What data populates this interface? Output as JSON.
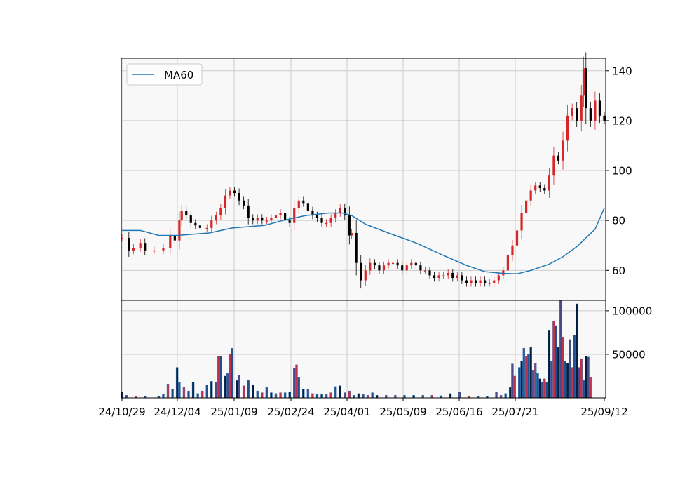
{
  "chart_data": [
    {
      "type": "candlestick",
      "legend": {
        "entries": [
          "MA60"
        ],
        "placement": "top-left"
      },
      "grid": true,
      "y_ticks": [
        60,
        80,
        100,
        120,
        140
      ],
      "ylim": [
        48,
        145
      ],
      "x_tick_labels": [
        "24/10/29",
        "24/12/04",
        "25/01/09",
        "25/02/24",
        "25/04/01",
        "25/05/09",
        "25/06/16",
        "25/07/21",
        "25/09/12"
      ],
      "colors": {
        "up": "#d62728",
        "down": "#000000",
        "ma": "#1f77b4",
        "background": "#f8f8f8",
        "grid": "#cccccc"
      },
      "ohlc_close": [
        {
          "t": 0,
          "v": 73
        },
        {
          "t": 3,
          "v": 68
        },
        {
          "t": 5,
          "v": 69
        },
        {
          "t": 8,
          "v": 71
        },
        {
          "t": 10,
          "v": 68
        },
        {
          "t": 14,
          "v": 68
        },
        {
          "t": 18,
          "v": 69
        },
        {
          "t": 21,
          "v": 74
        },
        {
          "t": 23,
          "v": 72
        },
        {
          "t": 25,
          "v": 80
        },
        {
          "t": 26,
          "v": 84
        },
        {
          "t": 28,
          "v": 82
        },
        {
          "t": 30,
          "v": 79
        },
        {
          "t": 32,
          "v": 78
        },
        {
          "t": 34,
          "v": 77
        },
        {
          "t": 37,
          "v": 77
        },
        {
          "t": 39,
          "v": 80
        },
        {
          "t": 41,
          "v": 82
        },
        {
          "t": 43,
          "v": 85
        },
        {
          "t": 45,
          "v": 90
        },
        {
          "t": 47,
          "v": 92
        },
        {
          "t": 49,
          "v": 91
        },
        {
          "t": 51,
          "v": 88
        },
        {
          "t": 53,
          "v": 86
        },
        {
          "t": 55,
          "v": 81
        },
        {
          "t": 57,
          "v": 80
        },
        {
          "t": 59,
          "v": 81
        },
        {
          "t": 61,
          "v": 80
        },
        {
          "t": 63,
          "v": 80
        },
        {
          "t": 65,
          "v": 81
        },
        {
          "t": 67,
          "v": 82
        },
        {
          "t": 69,
          "v": 83
        },
        {
          "t": 71,
          "v": 80
        },
        {
          "t": 73,
          "v": 79
        },
        {
          "t": 75,
          "v": 85
        },
        {
          "t": 77,
          "v": 88
        },
        {
          "t": 79,
          "v": 87
        },
        {
          "t": 81,
          "v": 84
        },
        {
          "t": 83,
          "v": 82
        },
        {
          "t": 85,
          "v": 81
        },
        {
          "t": 87,
          "v": 79
        },
        {
          "t": 89,
          "v": 79
        },
        {
          "t": 91,
          "v": 81
        },
        {
          "t": 93,
          "v": 83
        },
        {
          "t": 95,
          "v": 85
        },
        {
          "t": 97,
          "v": 82
        },
        {
          "t": 99,
          "v": 74
        },
        {
          "t": 100,
          "v": 75
        },
        {
          "t": 102,
          "v": 63
        },
        {
          "t": 104,
          "v": 56
        },
        {
          "t": 106,
          "v": 60
        },
        {
          "t": 108,
          "v": 63
        },
        {
          "t": 110,
          "v": 62
        },
        {
          "t": 112,
          "v": 60
        },
        {
          "t": 114,
          "v": 62
        },
        {
          "t": 116,
          "v": 63
        },
        {
          "t": 118,
          "v": 63
        },
        {
          "t": 120,
          "v": 62
        },
        {
          "t": 122,
          "v": 60
        },
        {
          "t": 124,
          "v": 62
        },
        {
          "t": 126,
          "v": 63
        },
        {
          "t": 128,
          "v": 62
        },
        {
          "t": 130,
          "v": 60
        },
        {
          "t": 132,
          "v": 60
        },
        {
          "t": 134,
          "v": 58
        },
        {
          "t": 136,
          "v": 57
        },
        {
          "t": 138,
          "v": 58
        },
        {
          "t": 140,
          "v": 58
        },
        {
          "t": 142,
          "v": 59
        },
        {
          "t": 144,
          "v": 57
        },
        {
          "t": 146,
          "v": 58
        },
        {
          "t": 148,
          "v": 56
        },
        {
          "t": 150,
          "v": 55
        },
        {
          "t": 152,
          "v": 56
        },
        {
          "t": 154,
          "v": 55
        },
        {
          "t": 156,
          "v": 56
        },
        {
          "t": 158,
          "v": 55
        },
        {
          "t": 160,
          "v": 55
        },
        {
          "t": 162,
          "v": 56
        },
        {
          "t": 164,
          "v": 58
        },
        {
          "t": 166,
          "v": 60
        },
        {
          "t": 168,
          "v": 66
        },
        {
          "t": 170,
          "v": 70
        },
        {
          "t": 172,
          "v": 76
        },
        {
          "t": 174,
          "v": 83
        },
        {
          "t": 176,
          "v": 88
        },
        {
          "t": 178,
          "v": 92
        },
        {
          "t": 180,
          "v": 94
        },
        {
          "t": 182,
          "v": 93
        },
        {
          "t": 184,
          "v": 92
        },
        {
          "t": 186,
          "v": 98
        },
        {
          "t": 188,
          "v": 106
        },
        {
          "t": 190,
          "v": 104
        },
        {
          "t": 192,
          "v": 112
        },
        {
          "t": 194,
          "v": 122
        },
        {
          "t": 196,
          "v": 125
        },
        {
          "t": 198,
          "v": 120
        },
        {
          "t": 200,
          "v": 130
        },
        {
          "t": 201,
          "v": 141
        },
        {
          "t": 202,
          "v": 125
        },
        {
          "t": 204,
          "v": 120
        },
        {
          "t": 206,
          "v": 128
        },
        {
          "t": 208,
          "v": 122
        },
        {
          "t": 210,
          "v": 120
        }
      ],
      "ma60": [
        {
          "t": 0,
          "v": 76
        },
        {
          "t": 8,
          "v": 76
        },
        {
          "t": 16,
          "v": 74
        },
        {
          "t": 24,
          "v": 74
        },
        {
          "t": 38,
          "v": 75
        },
        {
          "t": 48,
          "v": 77
        },
        {
          "t": 62,
          "v": 78
        },
        {
          "t": 70,
          "v": 80
        },
        {
          "t": 80,
          "v": 82
        },
        {
          "t": 90,
          "v": 83
        },
        {
          "t": 96,
          "v": 83
        },
        {
          "t": 100,
          "v": 82
        },
        {
          "t": 106,
          "v": 78.5
        },
        {
          "t": 116,
          "v": 75
        },
        {
          "t": 128,
          "v": 71
        },
        {
          "t": 140,
          "v": 66
        },
        {
          "t": 150,
          "v": 62
        },
        {
          "t": 158,
          "v": 59.5
        },
        {
          "t": 166,
          "v": 58.8
        },
        {
          "t": 172,
          "v": 58.6
        },
        {
          "t": 178,
          "v": 60
        },
        {
          "t": 186,
          "v": 62.5
        },
        {
          "t": 192,
          "v": 65.5
        },
        {
          "t": 198,
          "v": 69.5
        },
        {
          "t": 206,
          "v": 76.5
        },
        {
          "t": 210,
          "v": 85
        }
      ]
    },
    {
      "type": "bar",
      "name": "volume",
      "grid": true,
      "y_ticks": [
        50000,
        100000
      ],
      "ylim": [
        0,
        112000
      ],
      "volume": [
        {
          "t": 0,
          "v": 7000
        },
        {
          "t": 2,
          "v": 3000
        },
        {
          "t": 6,
          "v": 2000
        },
        {
          "t": 10,
          "v": 2000
        },
        {
          "t": 16,
          "v": 1500
        },
        {
          "t": 18,
          "v": 4000
        },
        {
          "t": 20,
          "v": 16000
        },
        {
          "t": 22,
          "v": 10000
        },
        {
          "t": 24,
          "v": 35000
        },
        {
          "t": 25,
          "v": 18000
        },
        {
          "t": 27,
          "v": 12000
        },
        {
          "t": 29,
          "v": 8000
        },
        {
          "t": 31,
          "v": 18000
        },
        {
          "t": 33,
          "v": 5000
        },
        {
          "t": 35,
          "v": 8000
        },
        {
          "t": 37,
          "v": 15000
        },
        {
          "t": 39,
          "v": 19000
        },
        {
          "t": 41,
          "v": 18000
        },
        {
          "t": 42,
          "v": 48000
        },
        {
          "t": 43,
          "v": 48000
        },
        {
          "t": 45,
          "v": 25000
        },
        {
          "t": 46,
          "v": 28000
        },
        {
          "t": 47,
          "v": 50000
        },
        {
          "t": 48,
          "v": 57000
        },
        {
          "t": 50,
          "v": 20000
        },
        {
          "t": 51,
          "v": 26000
        },
        {
          "t": 53,
          "v": 14000
        },
        {
          "t": 55,
          "v": 20000
        },
        {
          "t": 57,
          "v": 15000
        },
        {
          "t": 59,
          "v": 8000
        },
        {
          "t": 61,
          "v": 6000
        },
        {
          "t": 63,
          "v": 12000
        },
        {
          "t": 65,
          "v": 6000
        },
        {
          "t": 67,
          "v": 5000
        },
        {
          "t": 69,
          "v": 6000
        },
        {
          "t": 71,
          "v": 6000
        },
        {
          "t": 73,
          "v": 7000
        },
        {
          "t": 75,
          "v": 34000
        },
        {
          "t": 76,
          "v": 38000
        },
        {
          "t": 77,
          "v": 24000
        },
        {
          "t": 79,
          "v": 10000
        },
        {
          "t": 81,
          "v": 10000
        },
        {
          "t": 83,
          "v": 5000
        },
        {
          "t": 85,
          "v": 4000
        },
        {
          "t": 87,
          "v": 4000
        },
        {
          "t": 89,
          "v": 4000
        },
        {
          "t": 91,
          "v": 6000
        },
        {
          "t": 93,
          "v": 13000
        },
        {
          "t": 95,
          "v": 14000
        },
        {
          "t": 97,
          "v": 6000
        },
        {
          "t": 99,
          "v": 8000
        },
        {
          "t": 101,
          "v": 3000
        },
        {
          "t": 103,
          "v": 5000
        },
        {
          "t": 105,
          "v": 4000
        },
        {
          "t": 107,
          "v": 3000
        },
        {
          "t": 109,
          "v": 6000
        },
        {
          "t": 111,
          "v": 3000
        },
        {
          "t": 115,
          "v": 3000
        },
        {
          "t": 119,
          "v": 3000
        },
        {
          "t": 123,
          "v": 3000
        },
        {
          "t": 127,
          "v": 3000
        },
        {
          "t": 131,
          "v": 3000
        },
        {
          "t": 135,
          "v": 3000
        },
        {
          "t": 139,
          "v": 2500
        },
        {
          "t": 143,
          "v": 5000
        },
        {
          "t": 147,
          "v": 7000
        },
        {
          "t": 151,
          "v": 2000
        },
        {
          "t": 155,
          "v": 1500
        },
        {
          "t": 159,
          "v": 1500
        },
        {
          "t": 163,
          "v": 7000
        },
        {
          "t": 165,
          "v": 3000
        },
        {
          "t": 167,
          "v": 5000
        },
        {
          "t": 169,
          "v": 12000
        },
        {
          "t": 170,
          "v": 39000
        },
        {
          "t": 171,
          "v": 25000
        },
        {
          "t": 173,
          "v": 35000
        },
        {
          "t": 174,
          "v": 42000
        },
        {
          "t": 175,
          "v": 57000
        },
        {
          "t": 176,
          "v": 48000
        },
        {
          "t": 177,
          "v": 50000
        },
        {
          "t": 178,
          "v": 58000
        },
        {
          "t": 179,
          "v": 32000
        },
        {
          "t": 180,
          "v": 40000
        },
        {
          "t": 181,
          "v": 28000
        },
        {
          "t": 182,
          "v": 22000
        },
        {
          "t": 183,
          "v": 18000
        },
        {
          "t": 184,
          "v": 22000
        },
        {
          "t": 185,
          "v": 18000
        },
        {
          "t": 186,
          "v": 78000
        },
        {
          "t": 187,
          "v": 42000
        },
        {
          "t": 188,
          "v": 88000
        },
        {
          "t": 189,
          "v": 83000
        },
        {
          "t": 190,
          "v": 58000
        },
        {
          "t": 191,
          "v": 112000
        },
        {
          "t": 192,
          "v": 70000
        },
        {
          "t": 193,
          "v": 42000
        },
        {
          "t": 194,
          "v": 40000
        },
        {
          "t": 195,
          "v": 67000
        },
        {
          "t": 196,
          "v": 35000
        },
        {
          "t": 197,
          "v": 72000
        },
        {
          "t": 198,
          "v": 108000
        },
        {
          "t": 199,
          "v": 35000
        },
        {
          "t": 200,
          "v": 45000
        },
        {
          "t": 201,
          "v": 20000
        },
        {
          "t": 202,
          "v": 48000
        },
        {
          "t": 203,
          "v": 47000
        },
        {
          "t": 204,
          "v": 24000
        }
      ]
    }
  ]
}
